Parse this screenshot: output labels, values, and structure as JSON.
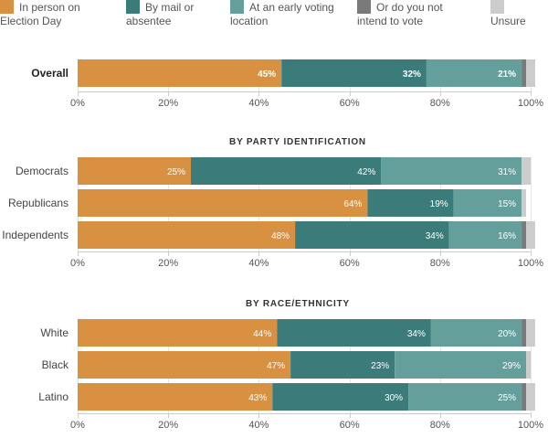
{
  "legend": [
    {
      "key": "in_person",
      "label": "In person on\nElection Day",
      "color": "#D79141"
    },
    {
      "key": "mail",
      "label": "By mail or\nabsentee",
      "color": "#3B7C7A"
    },
    {
      "key": "early",
      "label": "At an early voting\nlocation",
      "color": "#659F9C"
    },
    {
      "key": "not_vote",
      "label": "Or do you not\nintend to vote",
      "color": "#7A7A7A"
    },
    {
      "key": "unsure",
      "label": "\nUnsure",
      "color": "#CCCCCC"
    }
  ],
  "chart_data": {
    "type": "bar",
    "orientation": "horizontal",
    "stacked": true,
    "series_names": [
      "In person on Election Day",
      "By mail or absentee",
      "At an early voting location",
      "Or do you not intend to vote",
      "Unsure"
    ],
    "xlim": [
      0,
      100
    ],
    "x_ticks": [
      "0%",
      "20%",
      "40%",
      "60%",
      "80%",
      "100%"
    ],
    "grid": true,
    "legend_position": "top",
    "groups": [
      {
        "title": "",
        "rows": [
          {
            "label": "Overall",
            "bold": true,
            "values": [
              45,
              32,
              21,
              1,
              2
            ],
            "labels": [
              "45%",
              "32%",
              "21%",
              "",
              ""
            ]
          }
        ]
      },
      {
        "title": "BY PARTY IDENTIFICATION",
        "rows": [
          {
            "label": "Democrats",
            "bold": false,
            "values": [
              25,
              42,
              31,
              0,
              2
            ],
            "labels": [
              "25%",
              "42%",
              "31%",
              "",
              ""
            ]
          },
          {
            "label": "Republicans",
            "bold": false,
            "values": [
              64,
              19,
              15,
              0,
              1
            ],
            "labels": [
              "64%",
              "19%",
              "15%",
              "",
              ""
            ]
          },
          {
            "label": "Independents",
            "bold": false,
            "values": [
              48,
              34,
              16,
              1,
              2
            ],
            "labels": [
              "48%",
              "34%",
              "16%",
              "",
              ""
            ]
          }
        ]
      },
      {
        "title": "BY RACE/ETHNICITY",
        "rows": [
          {
            "label": "White",
            "bold": false,
            "values": [
              44,
              34,
              20,
              1,
              2
            ],
            "labels": [
              "44%",
              "34%",
              "20%",
              "",
              ""
            ]
          },
          {
            "label": "Black",
            "bold": false,
            "values": [
              47,
              23,
              29,
              0,
              1
            ],
            "labels": [
              "47%",
              "23%",
              "29%",
              "",
              ""
            ]
          },
          {
            "label": "Latino",
            "bold": false,
            "values": [
              43,
              30,
              25,
              1,
              2
            ],
            "labels": [
              "43%",
              "30%",
              "25%",
              "",
              ""
            ]
          }
        ]
      }
    ]
  }
}
